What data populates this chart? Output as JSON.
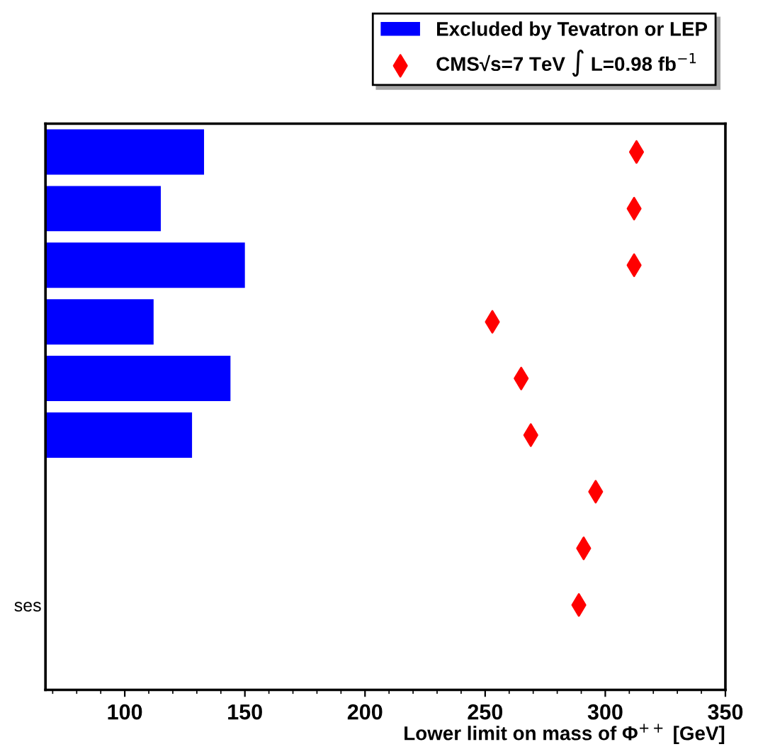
{
  "chart_data": {
    "type": "bar",
    "orientation": "horizontal",
    "categories": [
      null,
      null,
      null,
      null,
      null,
      null,
      null,
      null,
      "ses",
      null
    ],
    "xlabel": "Lower limit on mass of Φ$^{++}$ [GeV]",
    "xlim": [
      67,
      350
    ],
    "xticks": [
      100,
      150,
      200,
      250,
      300,
      350
    ],
    "legend": "top right",
    "grid": false,
    "series": [
      {
        "name": "Excluded by Tevatron or LEP",
        "color": "#0000ff",
        "values": [
          133,
          115,
          150,
          112,
          144,
          128,
          null,
          null,
          null,
          null
        ]
      },
      {
        "name": "CMS√s=7 TeV ∫ L=0.98 fb$^{−1}$",
        "type": "scatter",
        "marker": "diamond",
        "color": "#ff0000",
        "values": [
          313,
          312,
          312,
          253,
          265,
          269,
          296,
          291,
          289,
          null
        ]
      }
    ]
  }
}
